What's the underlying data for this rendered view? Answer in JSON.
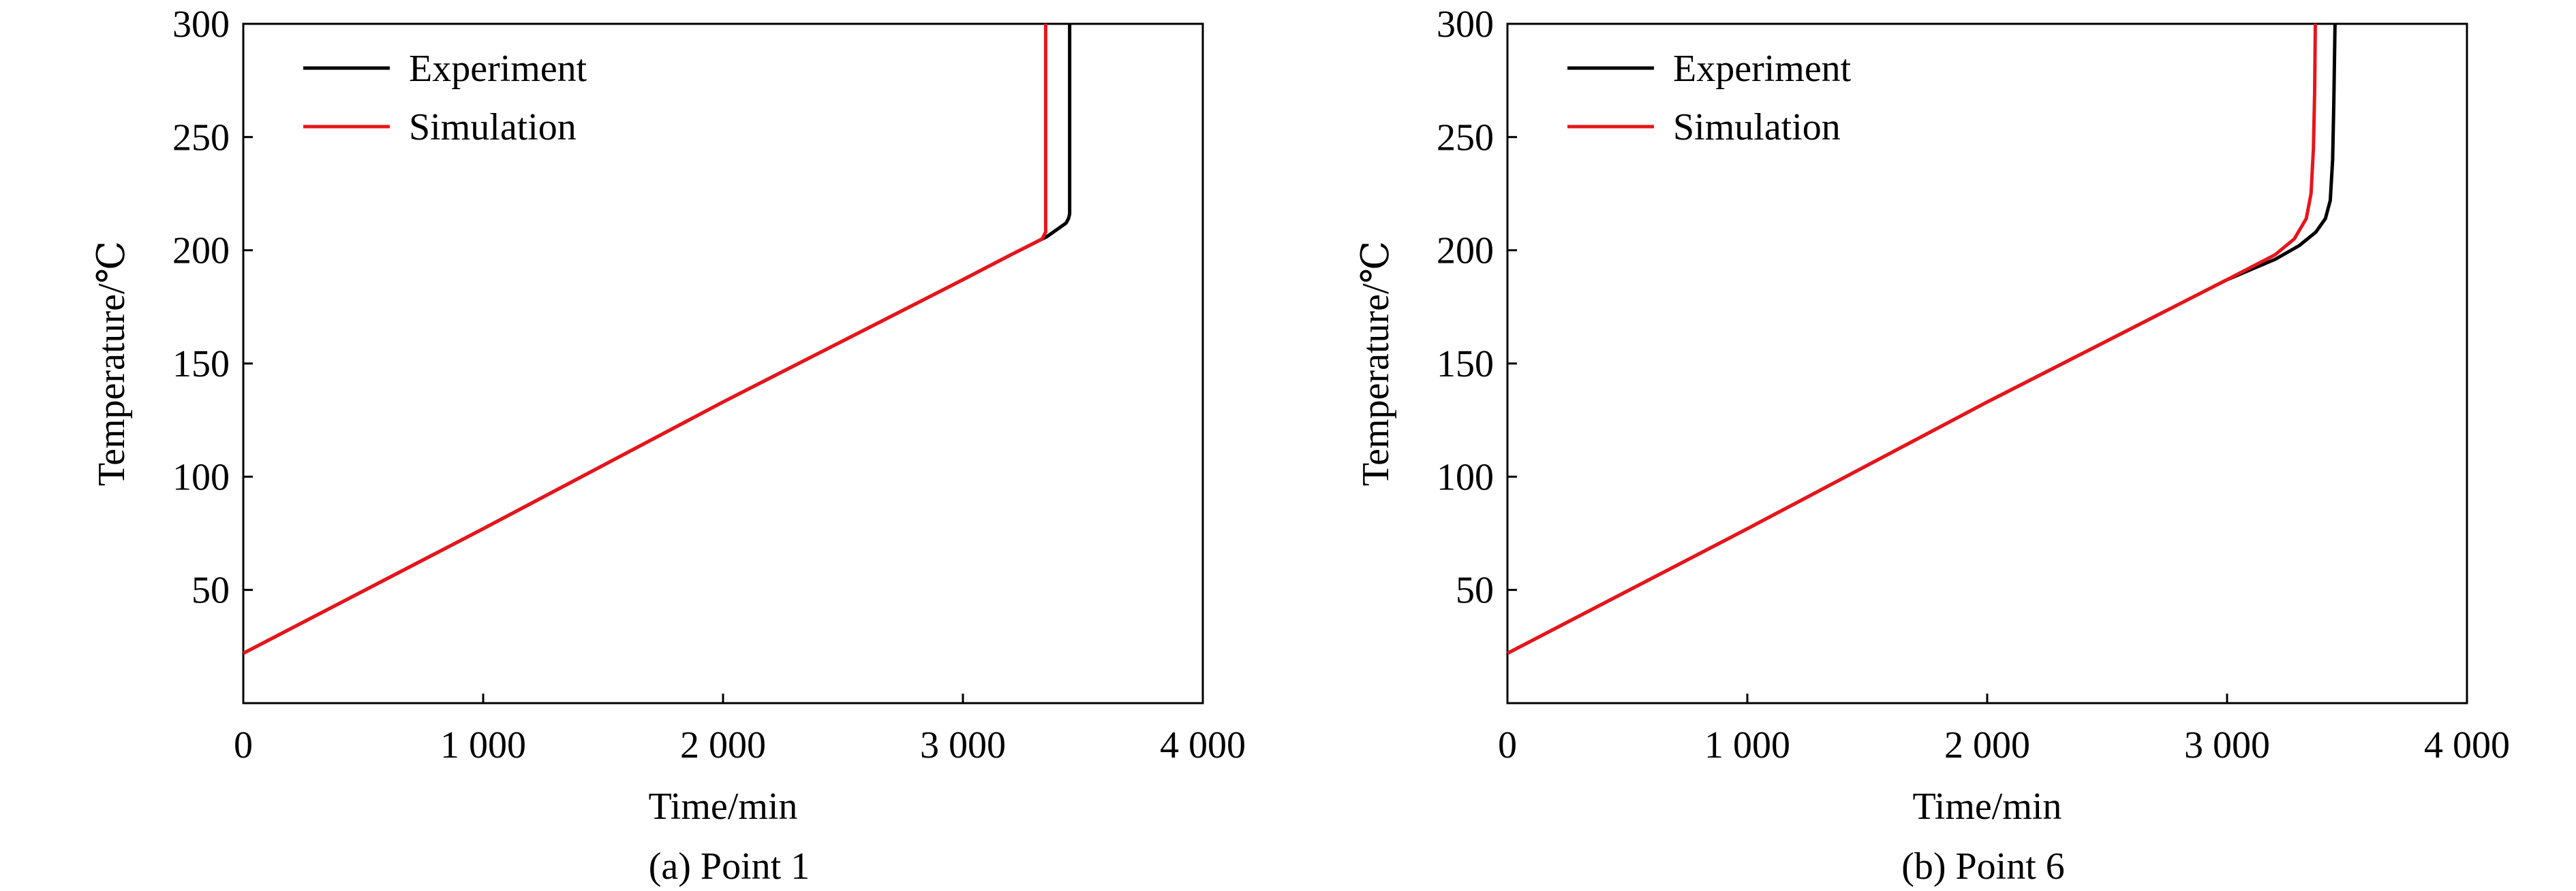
{
  "colors": {
    "experiment": "#000000",
    "simulation": "#e8141b",
    "axis": "#000000",
    "background": "#ffffff"
  },
  "captions": {
    "a": "(a) Point 1",
    "b": "(b) Point 6"
  },
  "chart_data": [
    {
      "type": "line",
      "caption": "(a) Point 1",
      "xlabel": "Time/min",
      "ylabel": "Temperature/℃",
      "xlim": [
        0,
        4000
      ],
      "ylim": [
        0,
        300
      ],
      "xticks": [
        0,
        1000,
        2000,
        3000,
        4000
      ],
      "xtick_labels": [
        "0",
        "1 000",
        "2 000",
        "3 000",
        "4 000"
      ],
      "yticks": [
        50,
        100,
        150,
        200,
        250,
        300
      ],
      "ytick_labels": [
        "50",
        "100",
        "150",
        "200",
        "250",
        "300"
      ],
      "grid": false,
      "legend_position": "top-left",
      "series": [
        {
          "name": "Experiment",
          "color": "#000000",
          "x": [
            0,
            1000,
            2000,
            3000,
            3200,
            3350,
            3430,
            3440,
            3445,
            3445
          ],
          "y": [
            22,
            77,
            133,
            187,
            198,
            206,
            212,
            214,
            216,
            300
          ]
        },
        {
          "name": "Simulation",
          "color": "#e8141b",
          "x": [
            0,
            1000,
            2000,
            3000,
            3200,
            3330,
            3345,
            3345
          ],
          "y": [
            22,
            77,
            133,
            187,
            198,
            205,
            208,
            300
          ]
        }
      ]
    },
    {
      "type": "line",
      "caption": "(b) Point 6",
      "xlabel": "Time/min",
      "ylabel": "Temperature/℃",
      "xlim": [
        0,
        4000
      ],
      "ylim": [
        0,
        300
      ],
      "xticks": [
        0,
        1000,
        2000,
        3000,
        4000
      ],
      "xtick_labels": [
        "0",
        "1 000",
        "2 000",
        "3 000",
        "4 000"
      ],
      "yticks": [
        50,
        100,
        150,
        200,
        250,
        300
      ],
      "ytick_labels": [
        "50",
        "100",
        "150",
        "200",
        "250",
        "300"
      ],
      "grid": false,
      "legend_position": "top-left",
      "series": [
        {
          "name": "Experiment",
          "color": "#000000",
          "x": [
            0,
            1000,
            2000,
            3000,
            3200,
            3300,
            3370,
            3410,
            3430,
            3440,
            3445,
            3450
          ],
          "y": [
            22,
            77,
            133,
            187,
            196,
            202,
            208,
            214,
            222,
            240,
            265,
            300
          ]
        },
        {
          "name": "Simulation",
          "color": "#e8141b",
          "x": [
            0,
            1000,
            2000,
            3000,
            3200,
            3280,
            3330,
            3350,
            3360,
            3365,
            3368
          ],
          "y": [
            22,
            77,
            133,
            187,
            198,
            205,
            214,
            225,
            245,
            270,
            300
          ]
        }
      ]
    }
  ]
}
